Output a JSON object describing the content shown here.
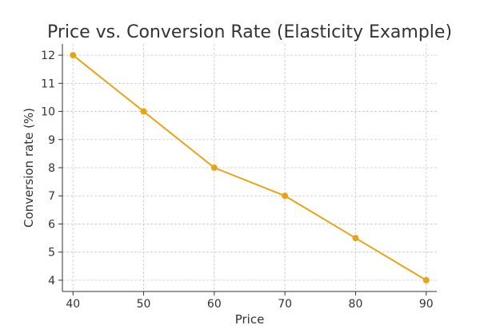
{
  "chart_data": {
    "type": "line",
    "title": "Price vs. Conversion Rate (Elasticity Example)",
    "xlabel": "Price",
    "ylabel": "Conversion rate (%)",
    "x": [
      40,
      50,
      60,
      70,
      80,
      90
    ],
    "series": [
      {
        "values": [
          12,
          10,
          8,
          7,
          5.5,
          4
        ]
      }
    ],
    "xticks": [
      40,
      50,
      60,
      70,
      80,
      90
    ],
    "yticks": [
      4,
      5,
      6,
      7,
      8,
      9,
      10,
      11,
      12
    ],
    "xlim": [
      38.5,
      91.5
    ],
    "ylim": [
      3.6,
      12.4
    ],
    "grid": true,
    "color": "#e8a317",
    "marker": "circle"
  }
}
